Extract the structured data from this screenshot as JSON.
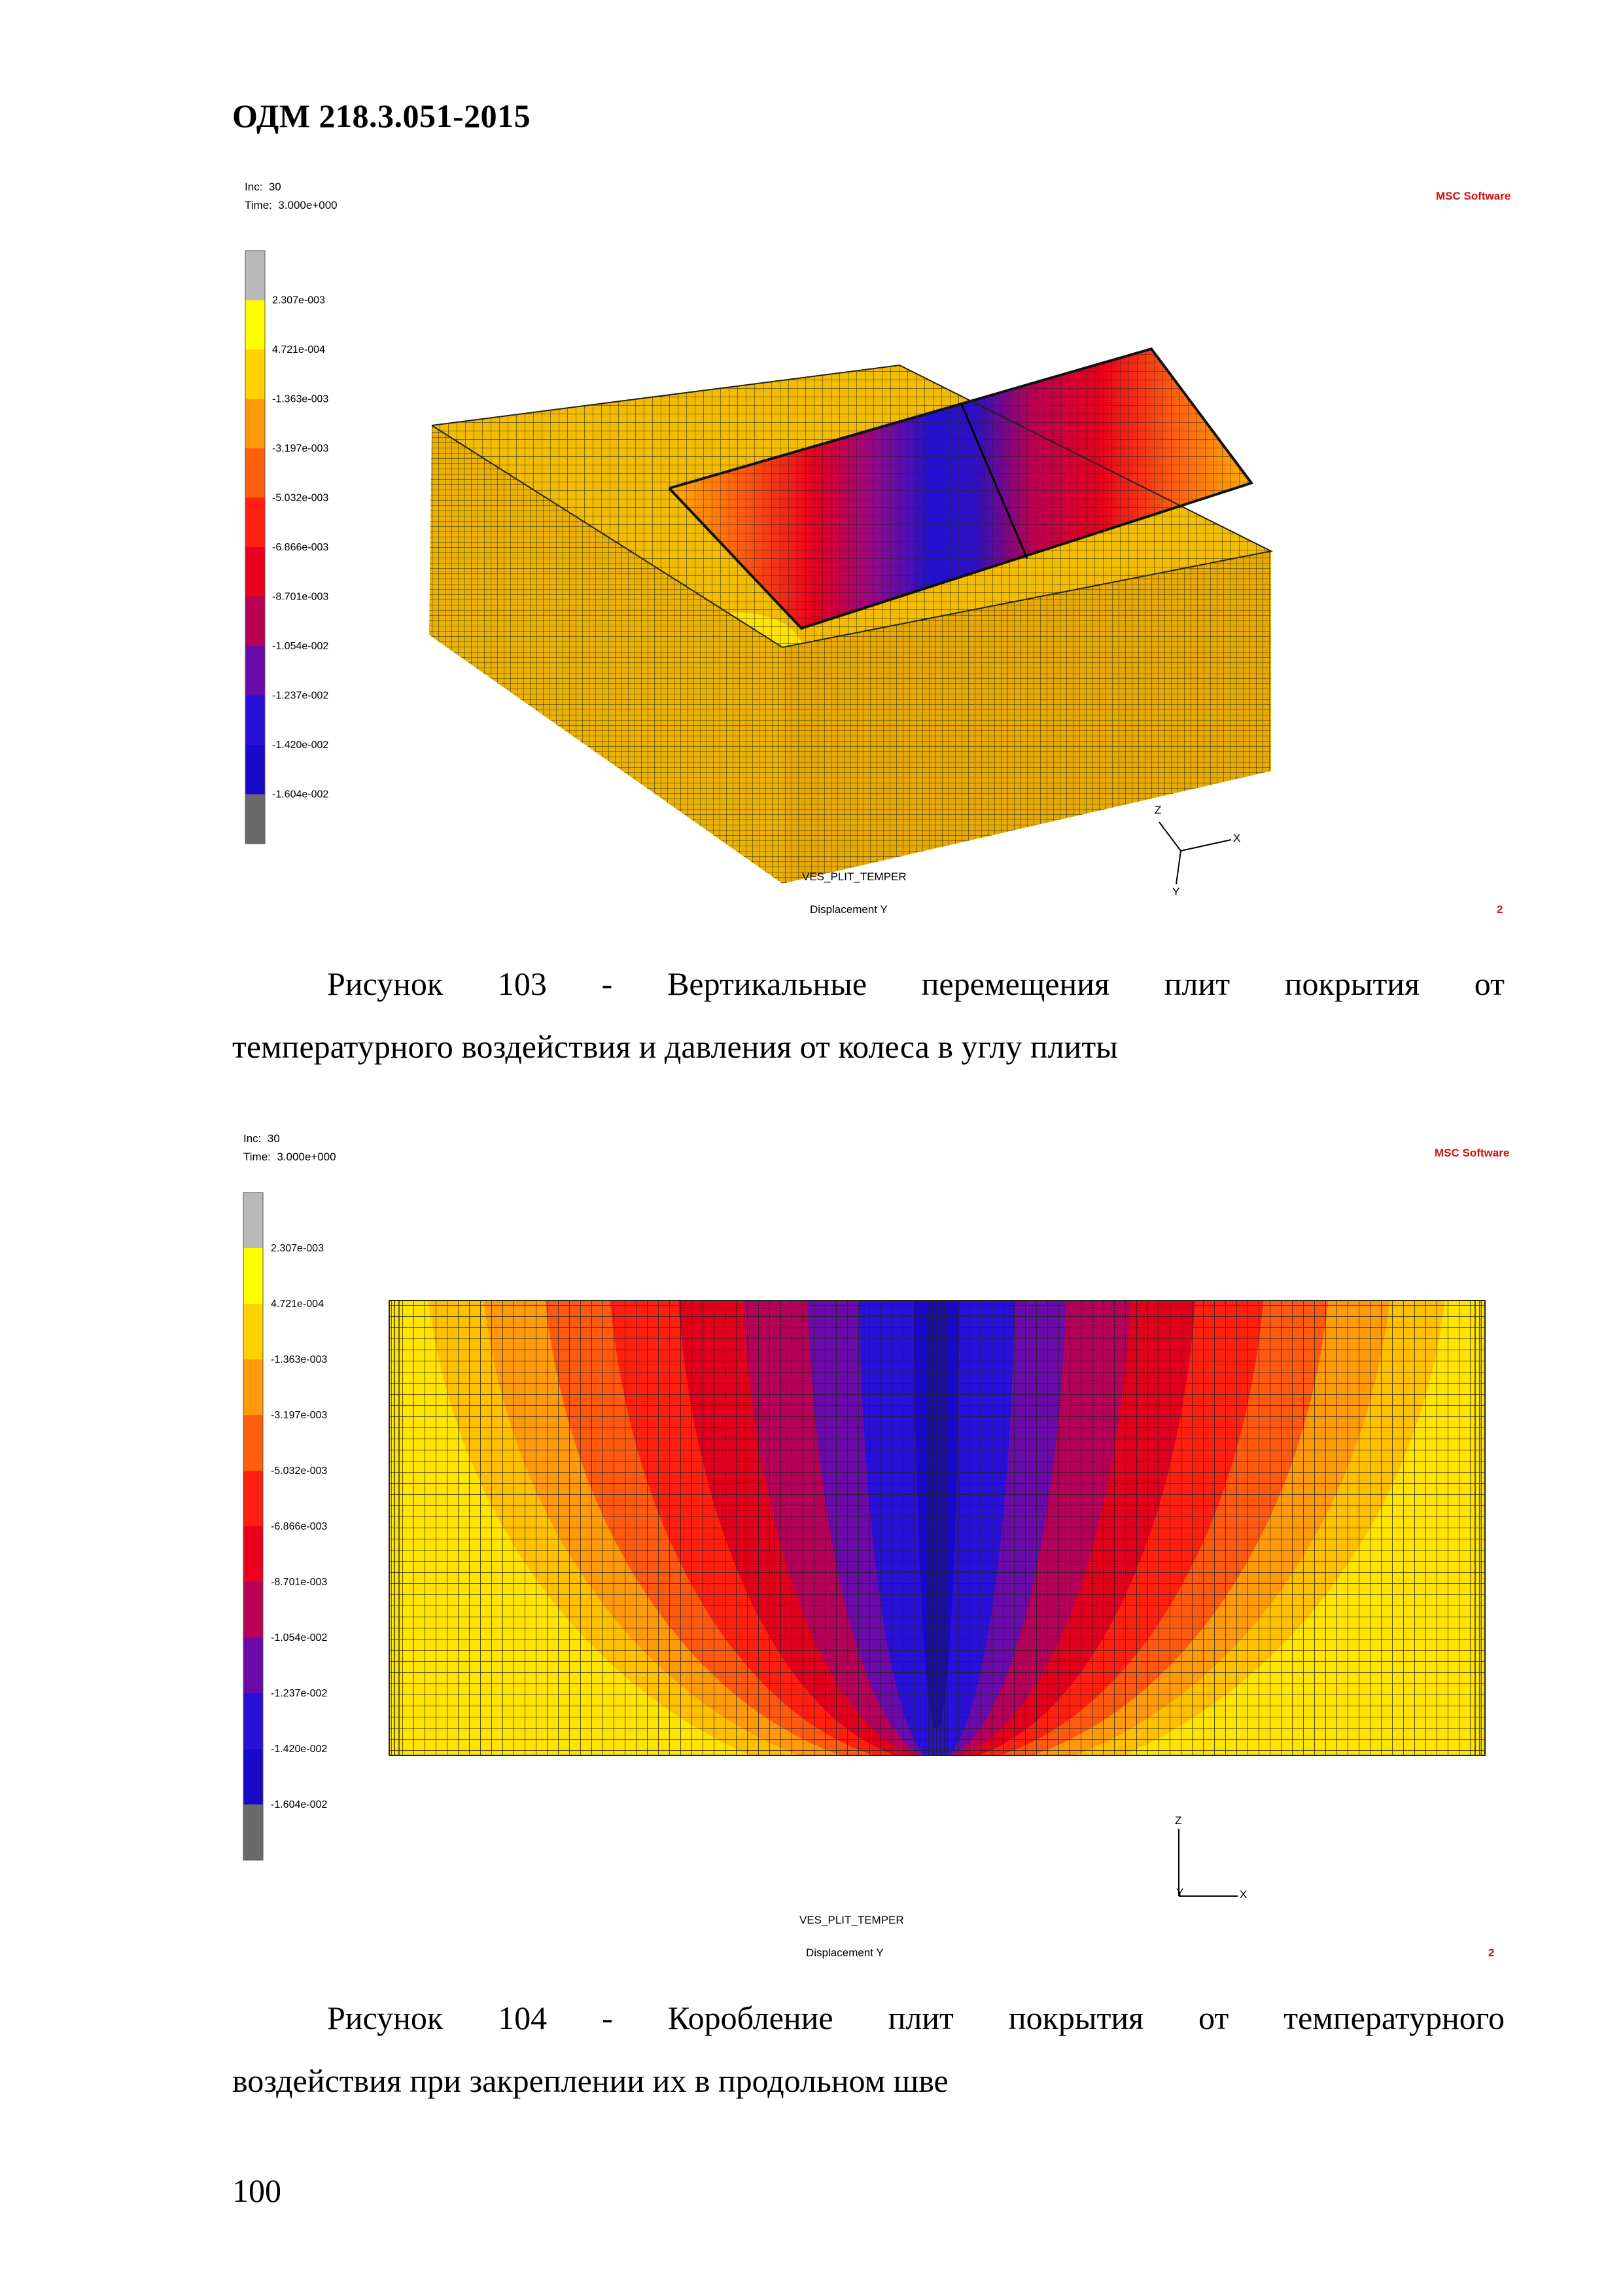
{
  "header": {
    "doc_code": "ОДМ 218.3.051-2015"
  },
  "legend_values": [
    "2.307e-003",
    "4.721e-004",
    "-1.363e-003",
    "-3.197e-003",
    "-5.032e-003",
    "-6.866e-003",
    "-8.701e-003",
    "-1.054e-002",
    "-1.237e-002",
    "-1.420e-002",
    "-1.604e-002"
  ],
  "legend_colors": [
    "#b9b9b9",
    "#ffff00",
    "#ffd200",
    "#ff9a0a",
    "#ff6010",
    "#ff2010",
    "#e8001c",
    "#b80054",
    "#6a0aa8",
    "#2810d8",
    "#1808c8",
    "#6a6a6a"
  ],
  "figures": [
    {
      "inc": "Inc:  30",
      "time": "Time:  3.000e+000",
      "brand": "MSC Software",
      "job": "VES_PLIT_TEMPER",
      "result": "Displacement Y",
      "index": "2",
      "axes": [
        "Z",
        "X",
        "Y"
      ]
    },
    {
      "inc": "Inc:  30",
      "time": "Time:  3.000e+000",
      "brand": "MSC Software",
      "job": "VES_PLIT_TEMPER",
      "result": "Displacement Y",
      "index": "2",
      "axes": [
        "Z",
        "X",
        "Y"
      ]
    }
  ],
  "captions": [
    {
      "line1": "Рисунок 103 - Вертикальные перемещения плит покрытия от",
      "line2": "температурного воздействия и давления от колеса в углу плиты"
    },
    {
      "line1": "Рисунок 104 - Коробление плит покрытия от температурного",
      "line2": "воздействия при закреплении их в продольном шве"
    }
  ],
  "page_number": "100"
}
